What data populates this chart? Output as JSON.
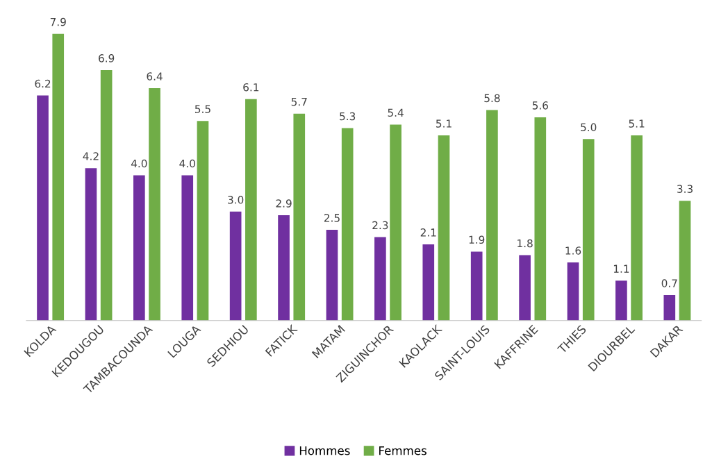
{
  "chart_data": {
    "type": "bar",
    "categories": [
      "KOLDA",
      "KEDOUGOU",
      "TAMBACOUNDA",
      "LOUGA",
      "SEDHIOU",
      "FATICK",
      "MATAM",
      "ZIGUINCHOR",
      "KAOLACK",
      "SAINT-LOUIS",
      "KAFFRINE",
      "THIES",
      "DIOURBEL",
      "DAKAR"
    ],
    "series": [
      {
        "name": "Hommes",
        "color": "#7030a0",
        "values": [
          6.2,
          4.2,
          4.0,
          4.0,
          3.0,
          2.9,
          2.5,
          2.3,
          2.1,
          1.9,
          1.8,
          1.6,
          1.1,
          0.7
        ],
        "value_labels": [
          "6.2",
          "4.2",
          "4.0",
          "4.0",
          "3.0",
          "2.9",
          "2.5",
          "2.3",
          "2.1",
          "1.9",
          "1.8",
          "1.6",
          "1.1",
          "0.7"
        ]
      },
      {
        "name": "Femmes",
        "color": "#70ad47",
        "values": [
          7.9,
          6.9,
          6.4,
          5.5,
          6.1,
          5.7,
          5.3,
          5.4,
          5.1,
          5.8,
          5.6,
          5.0,
          5.1,
          3.3
        ],
        "value_labels": [
          "7.9",
          "6.9",
          "6.4",
          "5.5",
          "6.1",
          "5.7",
          "5.3",
          "5.4",
          "5.1",
          "5.8",
          "5.6",
          "5.0",
          "5.1",
          "3.3"
        ]
      }
    ],
    "legend": "bottom",
    "grid": false,
    "tick_labels": "x"
  }
}
